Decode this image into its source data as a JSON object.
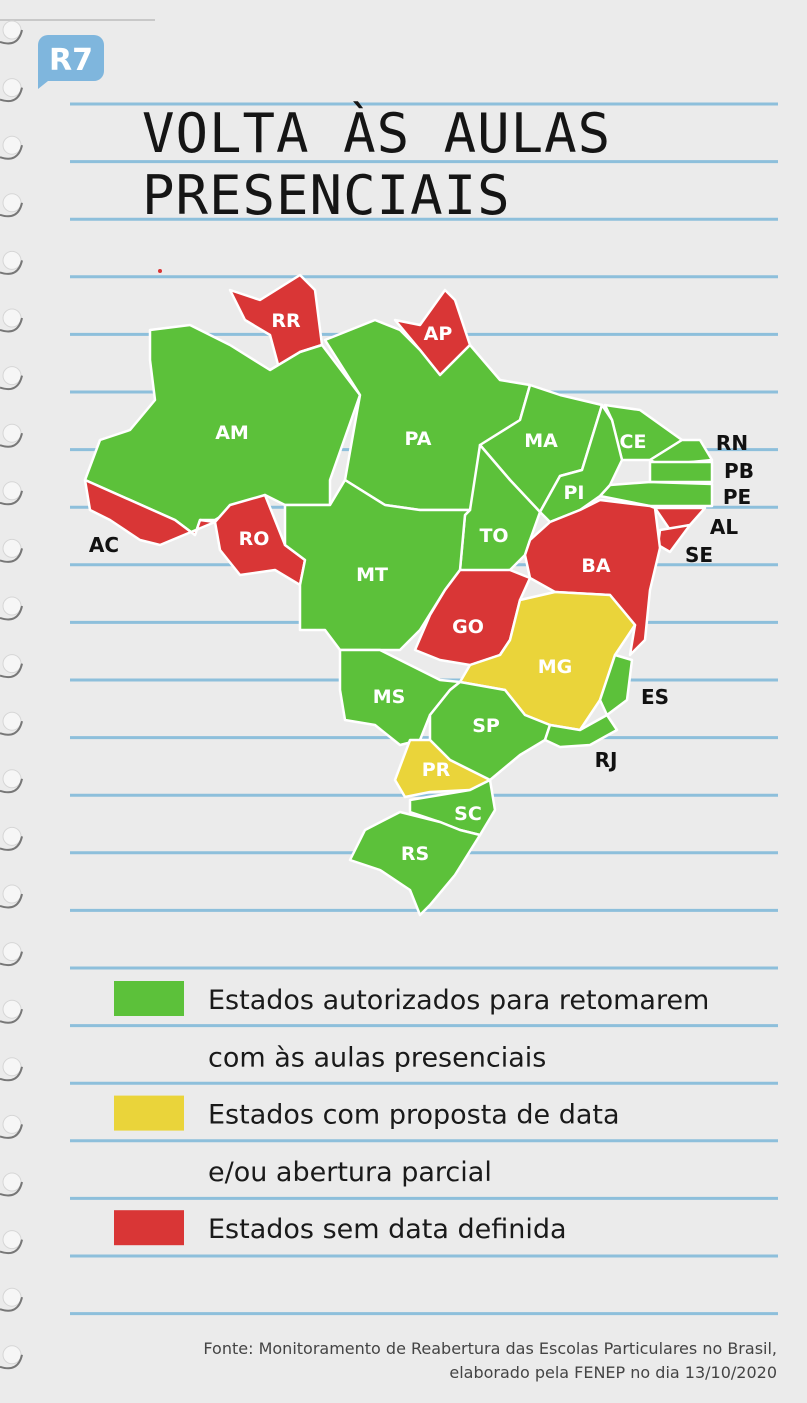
{
  "logo": "R7",
  "title": [
    "VOLTA ÀS AULAS",
    "PRESENCIAIS"
  ],
  "states": [
    {
      "label": "RR",
      "color": "#d93636"
    },
    {
      "label": "AP",
      "color": "#d93636"
    },
    {
      "label": "AM",
      "color": "#5cc13a"
    },
    {
      "label": "PA",
      "color": "#5cc13a"
    },
    {
      "label": "MA",
      "color": "#5cc13a"
    },
    {
      "label": "CE",
      "color": "#5cc13a"
    },
    {
      "label": "RN",
      "color": "#5cc13a"
    },
    {
      "label": "PB",
      "color": "#5cc13a"
    },
    {
      "label": "PE",
      "color": "#5cc13a"
    },
    {
      "label": "AL",
      "color": "#d93636"
    },
    {
      "label": "SE",
      "color": "#d93636"
    },
    {
      "label": "PI",
      "color": "#5cc13a"
    },
    {
      "label": "TO",
      "color": "#5cc13a"
    },
    {
      "label": "BA",
      "color": "#d93636"
    },
    {
      "label": "AC",
      "color": "#d93636"
    },
    {
      "label": "RO",
      "color": "#d93636"
    },
    {
      "label": "MT",
      "color": "#5cc13a"
    },
    {
      "label": "GO",
      "color": "#d93636"
    },
    {
      "label": "MG",
      "color": "#ead43a"
    },
    {
      "label": "ES",
      "color": "#5cc13a"
    },
    {
      "label": "MS",
      "color": "#5cc13a"
    },
    {
      "label": "SP",
      "color": "#5cc13a"
    },
    {
      "label": "RJ",
      "color": "#5cc13a"
    },
    {
      "label": "PR",
      "color": "#ead43a"
    },
    {
      "label": "SC",
      "color": "#5cc13a"
    },
    {
      "label": "RS",
      "color": "#5cc13a"
    }
  ],
  "legend": [
    {
      "color": "#5cc13a",
      "lines": [
        "Estados autorizados para retomarem",
        "com às aulas presenciais"
      ]
    },
    {
      "color": "#ead43a",
      "lines": [
        "Estados com proposta de data",
        "e/ou abertura parcial"
      ]
    },
    {
      "color": "#d93636",
      "lines": [
        "Estados sem data definida"
      ]
    }
  ],
  "source": [
    "Fonte: Monitoramento de Reabertura das Escolas Particulares no Brasil,",
    "elaborado pela FENEP  no dia 13/10/2020"
  ]
}
